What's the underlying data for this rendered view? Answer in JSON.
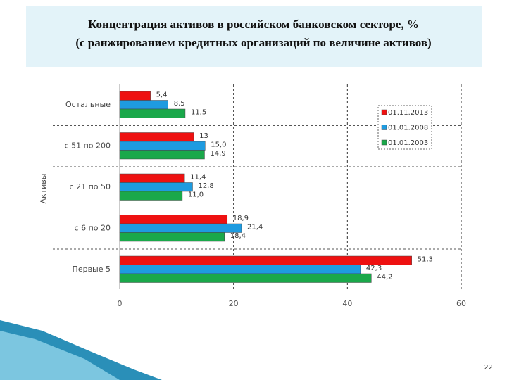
{
  "chart_data": {
    "type": "bar",
    "orientation": "horizontal",
    "title": "Концентрация активов в российском банковском секторе, %",
    "subtitle": "(с ранжированием кредитных организаций по величине активов)",
    "y_label": "Активы",
    "categories": [
      "Остальные",
      "с 51 по 200",
      "с 21 по 50",
      "с 6 по 20",
      "Первые 5"
    ],
    "series": [
      {
        "name": "01.11.2013",
        "color": "#ee1111",
        "values": [
          5.4,
          13,
          11.4,
          18.9,
          51.3
        ],
        "value_labels": [
          "5,4",
          "13",
          "11,4",
          "18,9",
          "51,3"
        ]
      },
      {
        "name": "01.01.2008",
        "color": "#1e9be0",
        "values": [
          8.5,
          15.0,
          12.8,
          21.4,
          42.3
        ],
        "value_labels": [
          "8,5",
          "15,0",
          "12,8",
          "21,4",
          "42,3"
        ]
      },
      {
        "name": "01.01.2003",
        "color": "#1aa84a",
        "values": [
          11.5,
          14.9,
          11.0,
          18.4,
          44.2
        ],
        "value_labels": [
          "11,5",
          "14,9",
          "11,0",
          "18,4",
          "44,2"
        ]
      }
    ],
    "xlim": [
      0,
      60
    ],
    "xticks": [
      0,
      20,
      40,
      60
    ],
    "grid": true,
    "legend": "upper right"
  },
  "page_number": "22"
}
